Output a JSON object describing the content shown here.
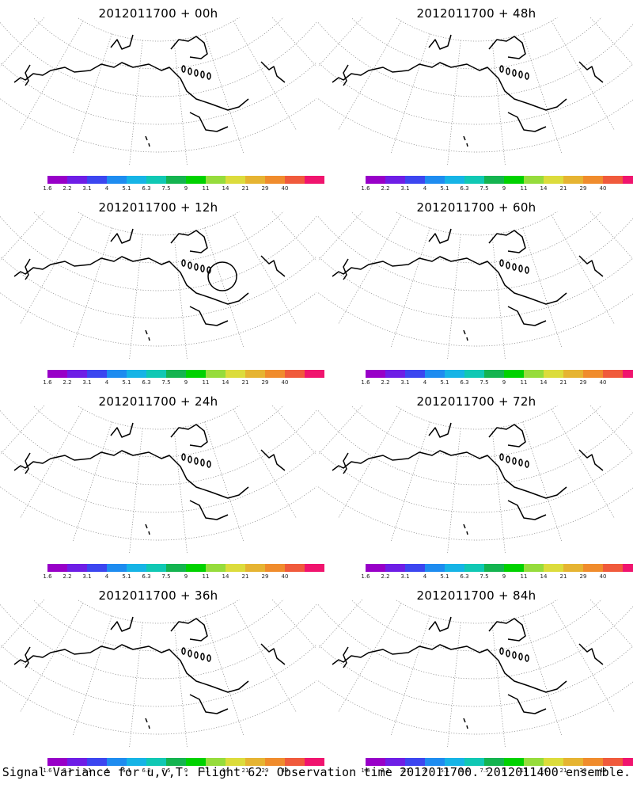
{
  "panels": [
    {
      "title": "2012011700 + 00h",
      "lead": "00h"
    },
    {
      "title": "2012011700 + 48h",
      "lead": "48h"
    },
    {
      "title": "2012011700 + 12h",
      "lead": "12h"
    },
    {
      "title": "2012011700 + 60h",
      "lead": "60h"
    },
    {
      "title": "2012011700 + 24h",
      "lead": "24h"
    },
    {
      "title": "2012011700 + 72h",
      "lead": "72h"
    },
    {
      "title": "2012011700 + 36h",
      "lead": "36h"
    },
    {
      "title": "2012011700 + 84h",
      "lead": "84h"
    }
  ],
  "colorbar": {
    "ticks": [
      "1.6",
      "2.2",
      "3.1",
      "4",
      "5.1",
      "6.3",
      "7.5",
      "9",
      "11",
      "14",
      "21",
      "29",
      "40"
    ],
    "colors": [
      "#9800c8",
      "#6e1ee6",
      "#3c46f0",
      "#1e8cf0",
      "#16b4e6",
      "#10c8b4",
      "#14b450",
      "#00d200",
      "#96dc3c",
      "#dcdc3c",
      "#e6b432",
      "#f08c2d",
      "#f05a3c",
      "#f0146e"
    ]
  },
  "footer": "Signal Variance for u,v,T. Flight 62. Observation time 2012011700. 2012011400 ensemble."
}
